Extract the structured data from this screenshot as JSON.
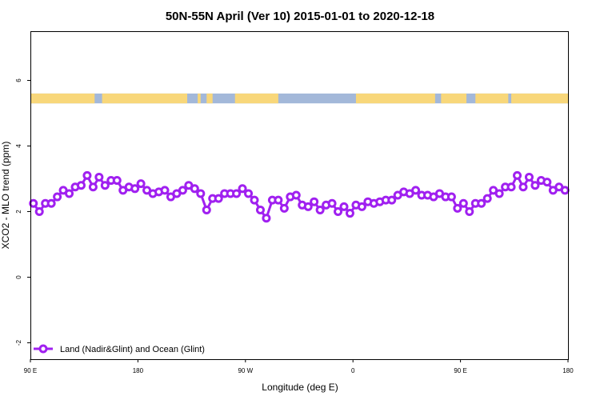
{
  "chart_data": {
    "type": "line",
    "title": "50N-55N April (Ver 10)   2015-01-01 to 2020-12-18",
    "xlabel": "Longitude (deg E)",
    "ylabel": "XCO2 - MLO trend (ppm)",
    "xlim": [
      -180,
      180
    ],
    "ylim": [
      -2.5,
      7.5
    ],
    "x_ticks": [
      {
        "value": -180,
        "label": "90 E"
      },
      {
        "value": -108,
        "label": "180"
      },
      {
        "value": -36,
        "label": "90 W"
      },
      {
        "value": 36,
        "label": "0"
      },
      {
        "value": 108,
        "label": "90 E"
      },
      {
        "value": 180,
        "label": "180"
      }
    ],
    "y_ticks": [
      {
        "value": -2,
        "label": "-2"
      },
      {
        "value": 0,
        "label": "0"
      },
      {
        "value": 2,
        "label": "2"
      },
      {
        "value": 4,
        "label": "4"
      },
      {
        "value": 6,
        "label": "6"
      }
    ],
    "land_ocean_strip": {
      "y_range": [
        5.3,
        5.6
      ],
      "ocean_color": "#a3b8d9",
      "land_color": "#f8d77a",
      "land_x_ranges": [
        [
          -180,
          -137
        ],
        [
          -132,
          -75
        ],
        [
          -68,
          -66
        ],
        [
          -62,
          -58
        ],
        [
          -43,
          -14
        ],
        [
          38,
          91
        ],
        [
          95,
          112
        ],
        [
          118,
          140
        ],
        [
          142,
          180
        ]
      ]
    },
    "legend_position": "bottom-left",
    "series": [
      {
        "name": "Land (Nadir&Glint) and Ocean (Glint)",
        "color": "#a020f0",
        "x": [
          -178,
          -174,
          -170,
          -166,
          -162,
          -158,
          -154,
          -150,
          -146,
          -142,
          -138,
          -134,
          -130,
          -126,
          -122,
          -118,
          -114,
          -110,
          -106,
          -102,
          -98,
          -94,
          -90,
          -86,
          -82,
          -78,
          -74,
          -70,
          -66,
          -62,
          -58,
          -54,
          -50,
          -46,
          -42,
          -38,
          -34,
          -30,
          -26,
          -22,
          -18,
          -14,
          -10,
          -6,
          -2,
          2,
          6,
          10,
          14,
          18,
          22,
          26,
          30,
          34,
          38,
          42,
          46,
          50,
          54,
          58,
          62,
          66,
          70,
          74,
          78,
          82,
          86,
          90,
          94,
          98,
          102,
          106,
          110,
          114,
          118,
          122,
          126,
          130,
          134,
          138,
          142,
          146,
          150,
          154,
          158,
          162,
          166,
          170,
          174,
          178
        ],
        "y": [
          2.25,
          2.0,
          2.25,
          2.25,
          2.45,
          2.65,
          2.55,
          2.75,
          2.8,
          3.1,
          2.75,
          3.05,
          2.8,
          2.95,
          2.95,
          2.65,
          2.75,
          2.7,
          2.85,
          2.65,
          2.55,
          2.6,
          2.65,
          2.45,
          2.55,
          2.65,
          2.8,
          2.7,
          2.55,
          2.05,
          2.4,
          2.4,
          2.55,
          2.55,
          2.55,
          2.7,
          2.55,
          2.35,
          2.05,
          1.8,
          2.35,
          2.35,
          2.1,
          2.45,
          2.5,
          2.2,
          2.15,
          2.3,
          2.05,
          2.2,
          2.25,
          2.0,
          2.15,
          1.95,
          2.2,
          2.15,
          2.3,
          2.25,
          2.3,
          2.35,
          2.35,
          2.5,
          2.6,
          2.55,
          2.65,
          2.5,
          2.5,
          2.45,
          2.55,
          2.45,
          2.45,
          2.1,
          2.25,
          2.0,
          2.25,
          2.25,
          2.4,
          2.65,
          2.55,
          2.75,
          2.75,
          3.1,
          2.75,
          3.05,
          2.8,
          2.95,
          2.9,
          2.65,
          2.75,
          2.65
        ]
      }
    ]
  }
}
